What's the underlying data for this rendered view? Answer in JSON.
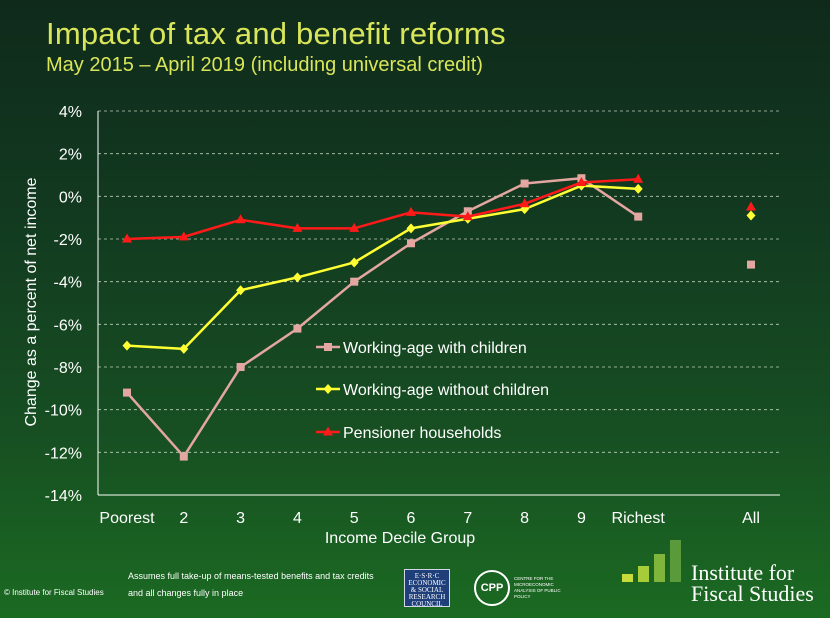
{
  "header": {
    "title": "Impact of tax and benefit reforms",
    "subtitle": "May 2015 – April 2019 (including universal credit)"
  },
  "chart_data": {
    "type": "line",
    "title": "Impact of tax and benefit reforms",
    "subtitle": "May 2015 – April 2019 (including universal credit)",
    "xlabel": "Income Decile Group",
    "ylabel": "Change as a percent of net income",
    "categories": [
      "Poorest",
      "2",
      "3",
      "4",
      "5",
      "6",
      "7",
      "8",
      "9",
      "Richest"
    ],
    "summary_category": "All",
    "ylim": [
      -14,
      4
    ],
    "yticks": [
      4,
      2,
      0,
      -2,
      -4,
      -6,
      -8,
      -10,
      -12,
      -14
    ],
    "ytick_labels": [
      "4%",
      "2%",
      "0%",
      "-2%",
      "-4%",
      "-6%",
      "-8%",
      "-10%",
      "-12%",
      "-14%"
    ],
    "grid": "horizontal dashed",
    "legend_position": "center-right",
    "series": [
      {
        "name": "Working-age with children",
        "color": "#e4a6a0",
        "marker": "square",
        "values": [
          -9.2,
          -12.2,
          -8.0,
          -6.2,
          -4.0,
          -2.2,
          -0.7,
          0.6,
          0.85,
          -0.95
        ],
        "all": -3.2
      },
      {
        "name": "Working-age without children",
        "color": "#ffff33",
        "marker": "diamond",
        "values": [
          -7.0,
          -7.15,
          -4.4,
          -3.8,
          -3.1,
          -1.5,
          -1.05,
          -0.6,
          0.5,
          0.35
        ],
        "all": -0.9
      },
      {
        "name": "Pensioner households",
        "color": "#ff1a1a",
        "marker": "triangle",
        "values": [
          -2.0,
          -1.9,
          -1.1,
          -1.5,
          -1.5,
          -0.75,
          -0.95,
          -0.35,
          0.65,
          0.8
        ],
        "all": -0.5
      }
    ]
  },
  "footer": {
    "note_line1": "Assumes full take-up of means-tested benefits and tax credits",
    "note_line2": "and all changes  fully in place",
    "copyright": "© Institute for Fiscal Studies",
    "esrc_lines": [
      "E·S·R·C",
      "ECONOMIC",
      "& SOCIAL",
      "RESEARCH",
      "COUNCIL"
    ],
    "cpp_label": "CPP",
    "cpp_text": "CENTRE FOR THE MICROECONOMIC ANALYSIS OF PUBLIC POLICY",
    "ifs_line1": "Institute for",
    "ifs_line2": "Fiscal Studies",
    "ifs_bar_colors": [
      "#c7dc3a",
      "#a7cc3a",
      "#7fb53a",
      "#5a9a3a"
    ]
  }
}
